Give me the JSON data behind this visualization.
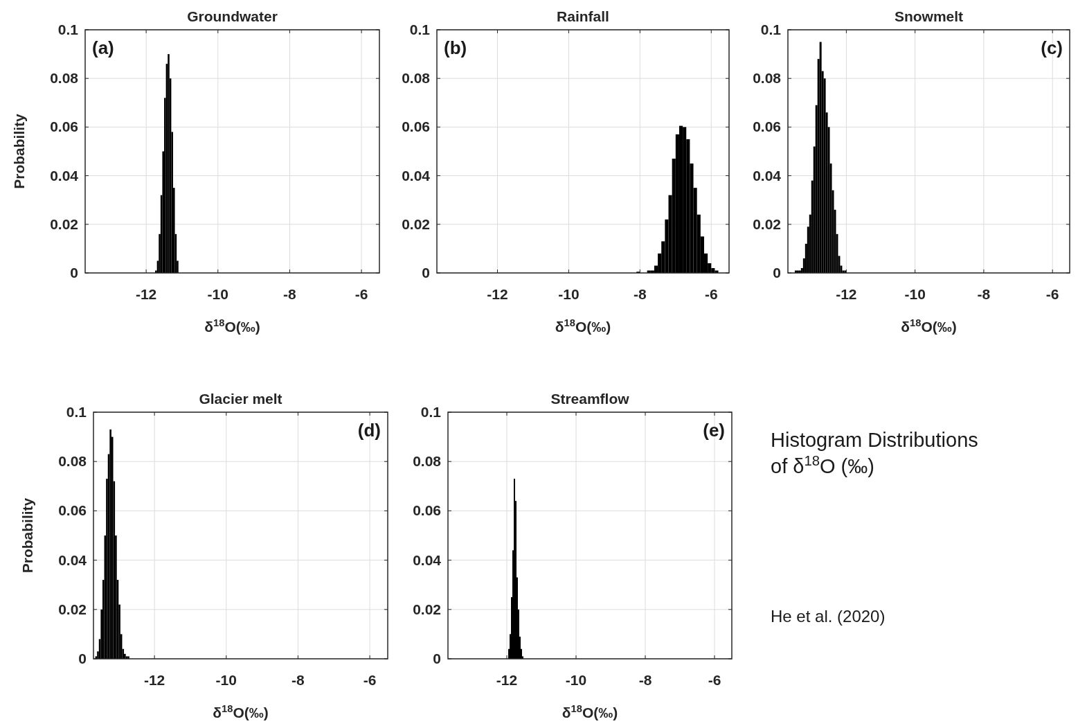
{
  "chart_data": [
    {
      "type": "histogram",
      "title": "Groundwater",
      "xlabel": "δ$^{18}$O(‰)",
      "ylabel": "Probability",
      "annotations": [
        "(a)"
      ],
      "color": "#000000",
      "grid": true,
      "xlim": [
        -13.7,
        -5.5
      ],
      "xticks": [
        -12,
        -10,
        -8,
        -6
      ],
      "ylim": [
        0,
        0.1
      ],
      "yticks": [
        0,
        0.02,
        0.04,
        0.06,
        0.08,
        0.1
      ],
      "bins": [
        -11.75,
        -11.7,
        -11.65,
        -11.6,
        -11.55,
        -11.5,
        -11.45,
        -11.4,
        -11.35,
        -11.3,
        -11.25,
        -11.2,
        -11.15,
        -11.1
      ],
      "values": [
        0.001,
        0.005,
        0.016,
        0.032,
        0.05,
        0.072,
        0.086,
        0.09,
        0.08,
        0.058,
        0.035,
        0.016,
        0.005
      ]
    },
    {
      "type": "histogram",
      "title": "Rainfall",
      "xlabel": "δ$^{18}$O(‰)",
      "annotations": [
        "(b)"
      ],
      "color": "#000000",
      "grid": true,
      "xlim": [
        -13.7,
        -5.5
      ],
      "xticks": [
        -12,
        -10,
        -8,
        -6
      ],
      "ylim": [
        0,
        0.1
      ],
      "yticks": [
        0,
        0.02,
        0.04,
        0.06,
        0.08,
        0.1
      ],
      "bins": [
        -8.1,
        -8.0,
        -7.9,
        -7.8,
        -7.7,
        -7.6,
        -7.5,
        -7.4,
        -7.3,
        -7.2,
        -7.1,
        -7.0,
        -6.9,
        -6.8,
        -6.7,
        -6.6,
        -6.5,
        -6.4,
        -6.3,
        -6.2,
        -6.1,
        -6.0,
        -5.9,
        -5.8
      ],
      "values": [
        0.0005,
        0,
        0,
        0.001,
        0.001,
        0.003,
        0.008,
        0.013,
        0.022,
        0.032,
        0.047,
        0.057,
        0.0605,
        0.06,
        0.055,
        0.045,
        0.035,
        0.024,
        0.015,
        0.008,
        0.004,
        0.002,
        0.001
      ]
    },
    {
      "type": "histogram",
      "title": "Snowmelt",
      "xlabel": "δ$^{18}$O(‰)",
      "annotations": [
        "(c)"
      ],
      "color": "#000000",
      "grid": true,
      "xlim": [
        -13.7,
        -5.5
      ],
      "xticks": [
        -12,
        -10,
        -8,
        -6
      ],
      "ylim": [
        0,
        0.1
      ],
      "yticks": [
        0,
        0.02,
        0.04,
        0.06,
        0.08,
        0.1
      ],
      "bins": [
        -13.5,
        -13.44,
        -13.38,
        -13.32,
        -13.26,
        -13.2,
        -13.14,
        -13.08,
        -13.02,
        -12.96,
        -12.9,
        -12.84,
        -12.78,
        -12.72,
        -12.66,
        -12.6,
        -12.54,
        -12.48,
        -12.42,
        -12.36,
        -12.3,
        -12.24,
        -12.18,
        -12.12,
        -12.06,
        -12.0
      ],
      "values": [
        0.001,
        0.001,
        0.001,
        0.002,
        0.006,
        0.012,
        0.019,
        0.024,
        0.038,
        0.052,
        0.069,
        0.088,
        0.095,
        0.083,
        0.08,
        0.066,
        0.06,
        0.045,
        0.034,
        0.026,
        0.016,
        0.007,
        0.003,
        0.001,
        0.001
      ]
    },
    {
      "type": "histogram",
      "title": "Glacier melt",
      "xlabel": "δ$^{18}$O(‰)",
      "ylabel": "Probability",
      "annotations": [
        "(d)"
      ],
      "color": "#000000",
      "grid": true,
      "xlim": [
        -13.7,
        -5.5
      ],
      "xticks": [
        -12,
        -10,
        -8,
        -6
      ],
      "ylim": [
        0,
        0.1
      ],
      "yticks": [
        0,
        0.02,
        0.04,
        0.06,
        0.08,
        0.1
      ],
      "bins": [
        -13.65,
        -13.6,
        -13.55,
        -13.5,
        -13.45,
        -13.4,
        -13.35,
        -13.3,
        -13.25,
        -13.2,
        -13.15,
        -13.1,
        -13.05,
        -13.0,
        -12.95,
        -12.9,
        -12.85,
        -12.8,
        -12.75,
        -12.7
      ],
      "values": [
        0.001,
        0.003,
        0.008,
        0.02,
        0.032,
        0.05,
        0.073,
        0.083,
        0.093,
        0.09,
        0.072,
        0.05,
        0.032,
        0.022,
        0.01,
        0.004,
        0.002,
        0.001,
        0.001
      ]
    },
    {
      "type": "histogram",
      "title": "Streamflow",
      "xlabel": "δ$^{18}$O(‰)",
      "annotations": [
        "(e)"
      ],
      "color": "#000000",
      "grid": true,
      "xlim": [
        -13.7,
        -5.5
      ],
      "xticks": [
        -12,
        -10,
        -8,
        -6
      ],
      "ylim": [
        0,
        0.1
      ],
      "yticks": [
        0,
        0.02,
        0.04,
        0.06,
        0.08,
        0.1
      ],
      "bins": [
        -11.96,
        -11.92,
        -11.88,
        -11.84,
        -11.8,
        -11.76,
        -11.72,
        -11.68,
        -11.64,
        -11.6,
        -11.56,
        -11.52
      ],
      "values": [
        0.004,
        0.01,
        0.025,
        0.044,
        0.073,
        0.064,
        0.033,
        0.02,
        0.009,
        0.004,
        0.001
      ]
    },
    {
      "type": "other",
      "title": "Histogram Distributions of δ$^{18}$O (‰)",
      "annotations": [
        "He et al. (2020)"
      ]
    }
  ]
}
